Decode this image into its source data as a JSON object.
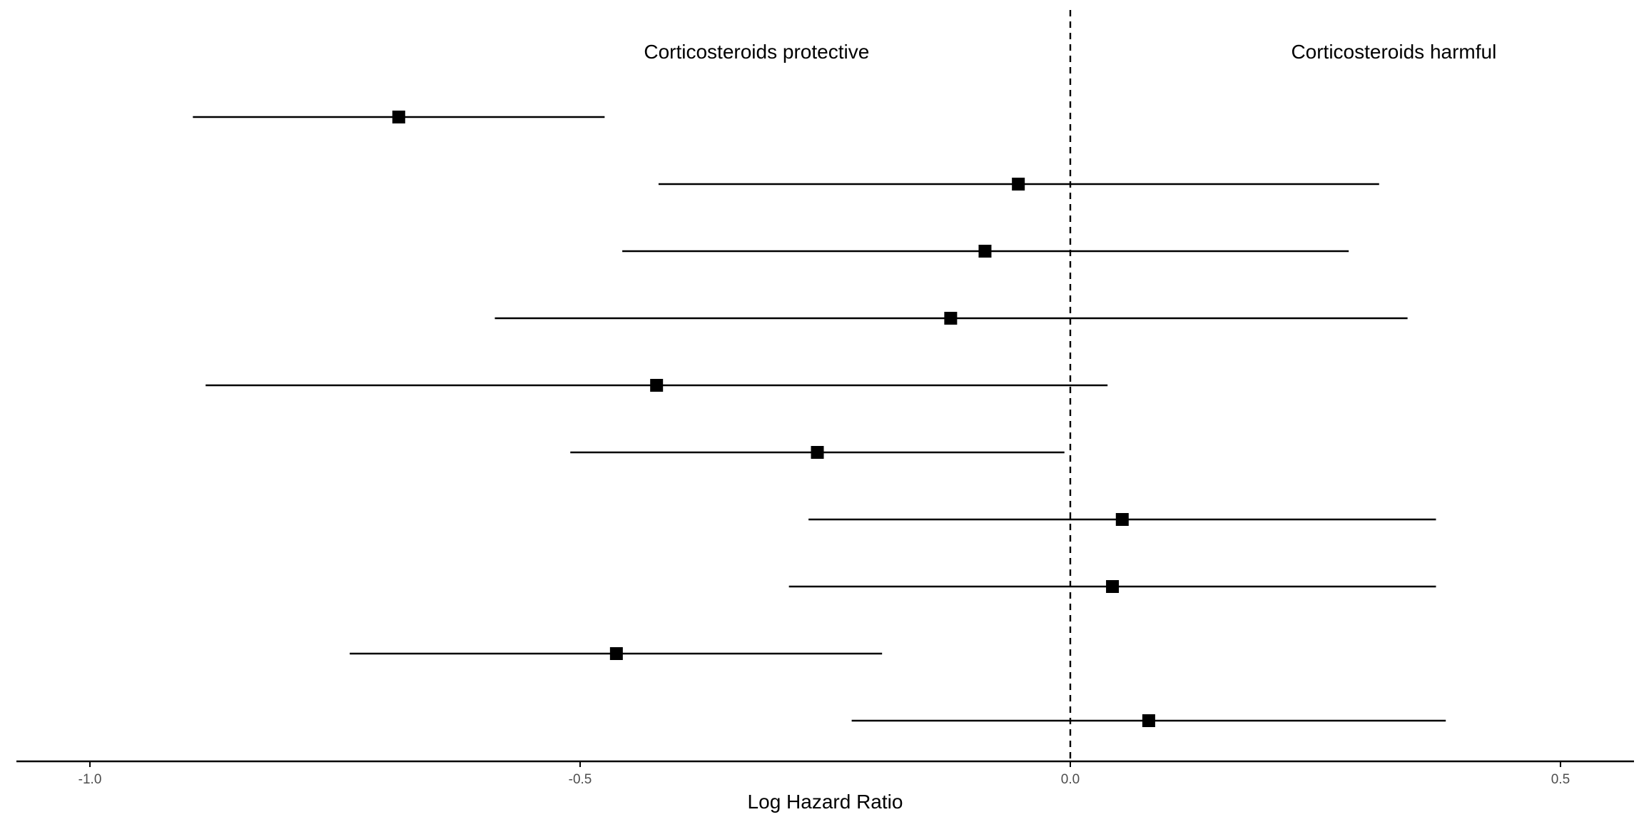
{
  "chart_data": {
    "type": "forest",
    "xlabel": "Log Hazard Ratio",
    "ylabel": "",
    "xlim": [
      -1.075,
      0.575
    ],
    "xticks": [
      -1.0,
      -0.5,
      0.0,
      0.5
    ],
    "xtick_labels": [
      "-1.0",
      "-0.5",
      "0.0",
      "0.5"
    ],
    "reference_line": 0.0,
    "reference_line_style": "dashed",
    "grid": false,
    "annotations": [
      {
        "text": "Corticosteroids protective",
        "x": -0.32
      },
      {
        "text": "Corticosteroids harmful",
        "x": 0.33
      }
    ],
    "estimates": [
      {
        "estimate": -0.685,
        "lower": -0.895,
        "upper": -0.475
      },
      {
        "estimate": -0.053,
        "lower": -0.42,
        "upper": 0.315
      },
      {
        "estimate": -0.087,
        "lower": -0.457,
        "upper": 0.284
      },
      {
        "estimate": -0.122,
        "lower": -0.587,
        "upper": 0.344
      },
      {
        "estimate": -0.422,
        "lower": -0.882,
        "upper": 0.038
      },
      {
        "estimate": -0.258,
        "lower": -0.51,
        "upper": -0.006
      },
      {
        "estimate": 0.053,
        "lower": -0.267,
        "upper": 0.373
      },
      {
        "estimate": 0.043,
        "lower": -0.287,
        "upper": 0.373
      },
      {
        "estimate": -0.463,
        "lower": -0.735,
        "upper": -0.192
      },
      {
        "estimate": 0.08,
        "lower": -0.223,
        "upper": 0.383
      }
    ],
    "colors": {
      "marker": "#000000",
      "line": "#000000",
      "axis": "#000000",
      "tick_text": "#4d4d4d"
    }
  }
}
